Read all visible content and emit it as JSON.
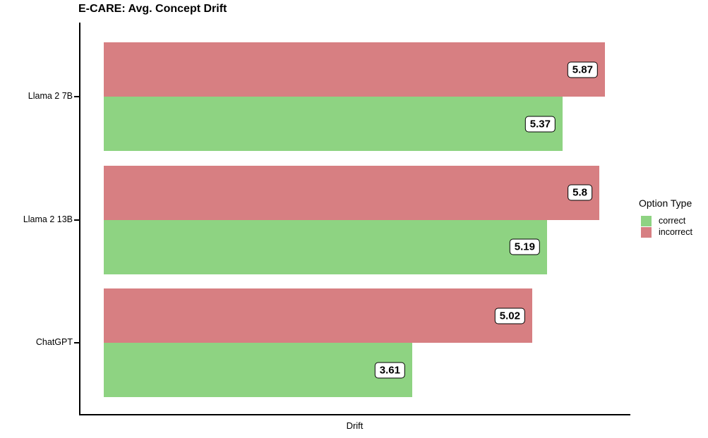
{
  "chart_data": {
    "type": "bar",
    "orientation": "horizontal",
    "title": "E-CARE: Avg. Concept Drift",
    "xlabel": "Drift",
    "ylabel": "",
    "categories": [
      "Llama 2 7B",
      "Llama 2 13B",
      "ChatGPT"
    ],
    "series": [
      {
        "name": "incorrect",
        "color": "#d77f82",
        "values": [
          5.87,
          5.8,
          5.02
        ],
        "labels": [
          "5.87",
          "5.8",
          "5.02"
        ]
      },
      {
        "name": "correct",
        "color": "#8ed382",
        "values": [
          5.37,
          5.19,
          3.61
        ],
        "labels": [
          "5.37",
          "5.19",
          "3.61"
        ]
      }
    ],
    "xlim": [
      0,
      6.17
    ],
    "grid": false,
    "legend_position": "right"
  },
  "legend": {
    "title": "Option Type",
    "items": [
      {
        "label": "correct",
        "color": "#8ed382",
        "icon": "swatch-square"
      },
      {
        "label": "incorrect",
        "color": "#d77f82",
        "icon": "swatch-square"
      }
    ]
  },
  "colors": {
    "axis": "#000000",
    "value_label_bg": "#ffffff",
    "value_label_border": "#000000",
    "text": "#000000"
  }
}
